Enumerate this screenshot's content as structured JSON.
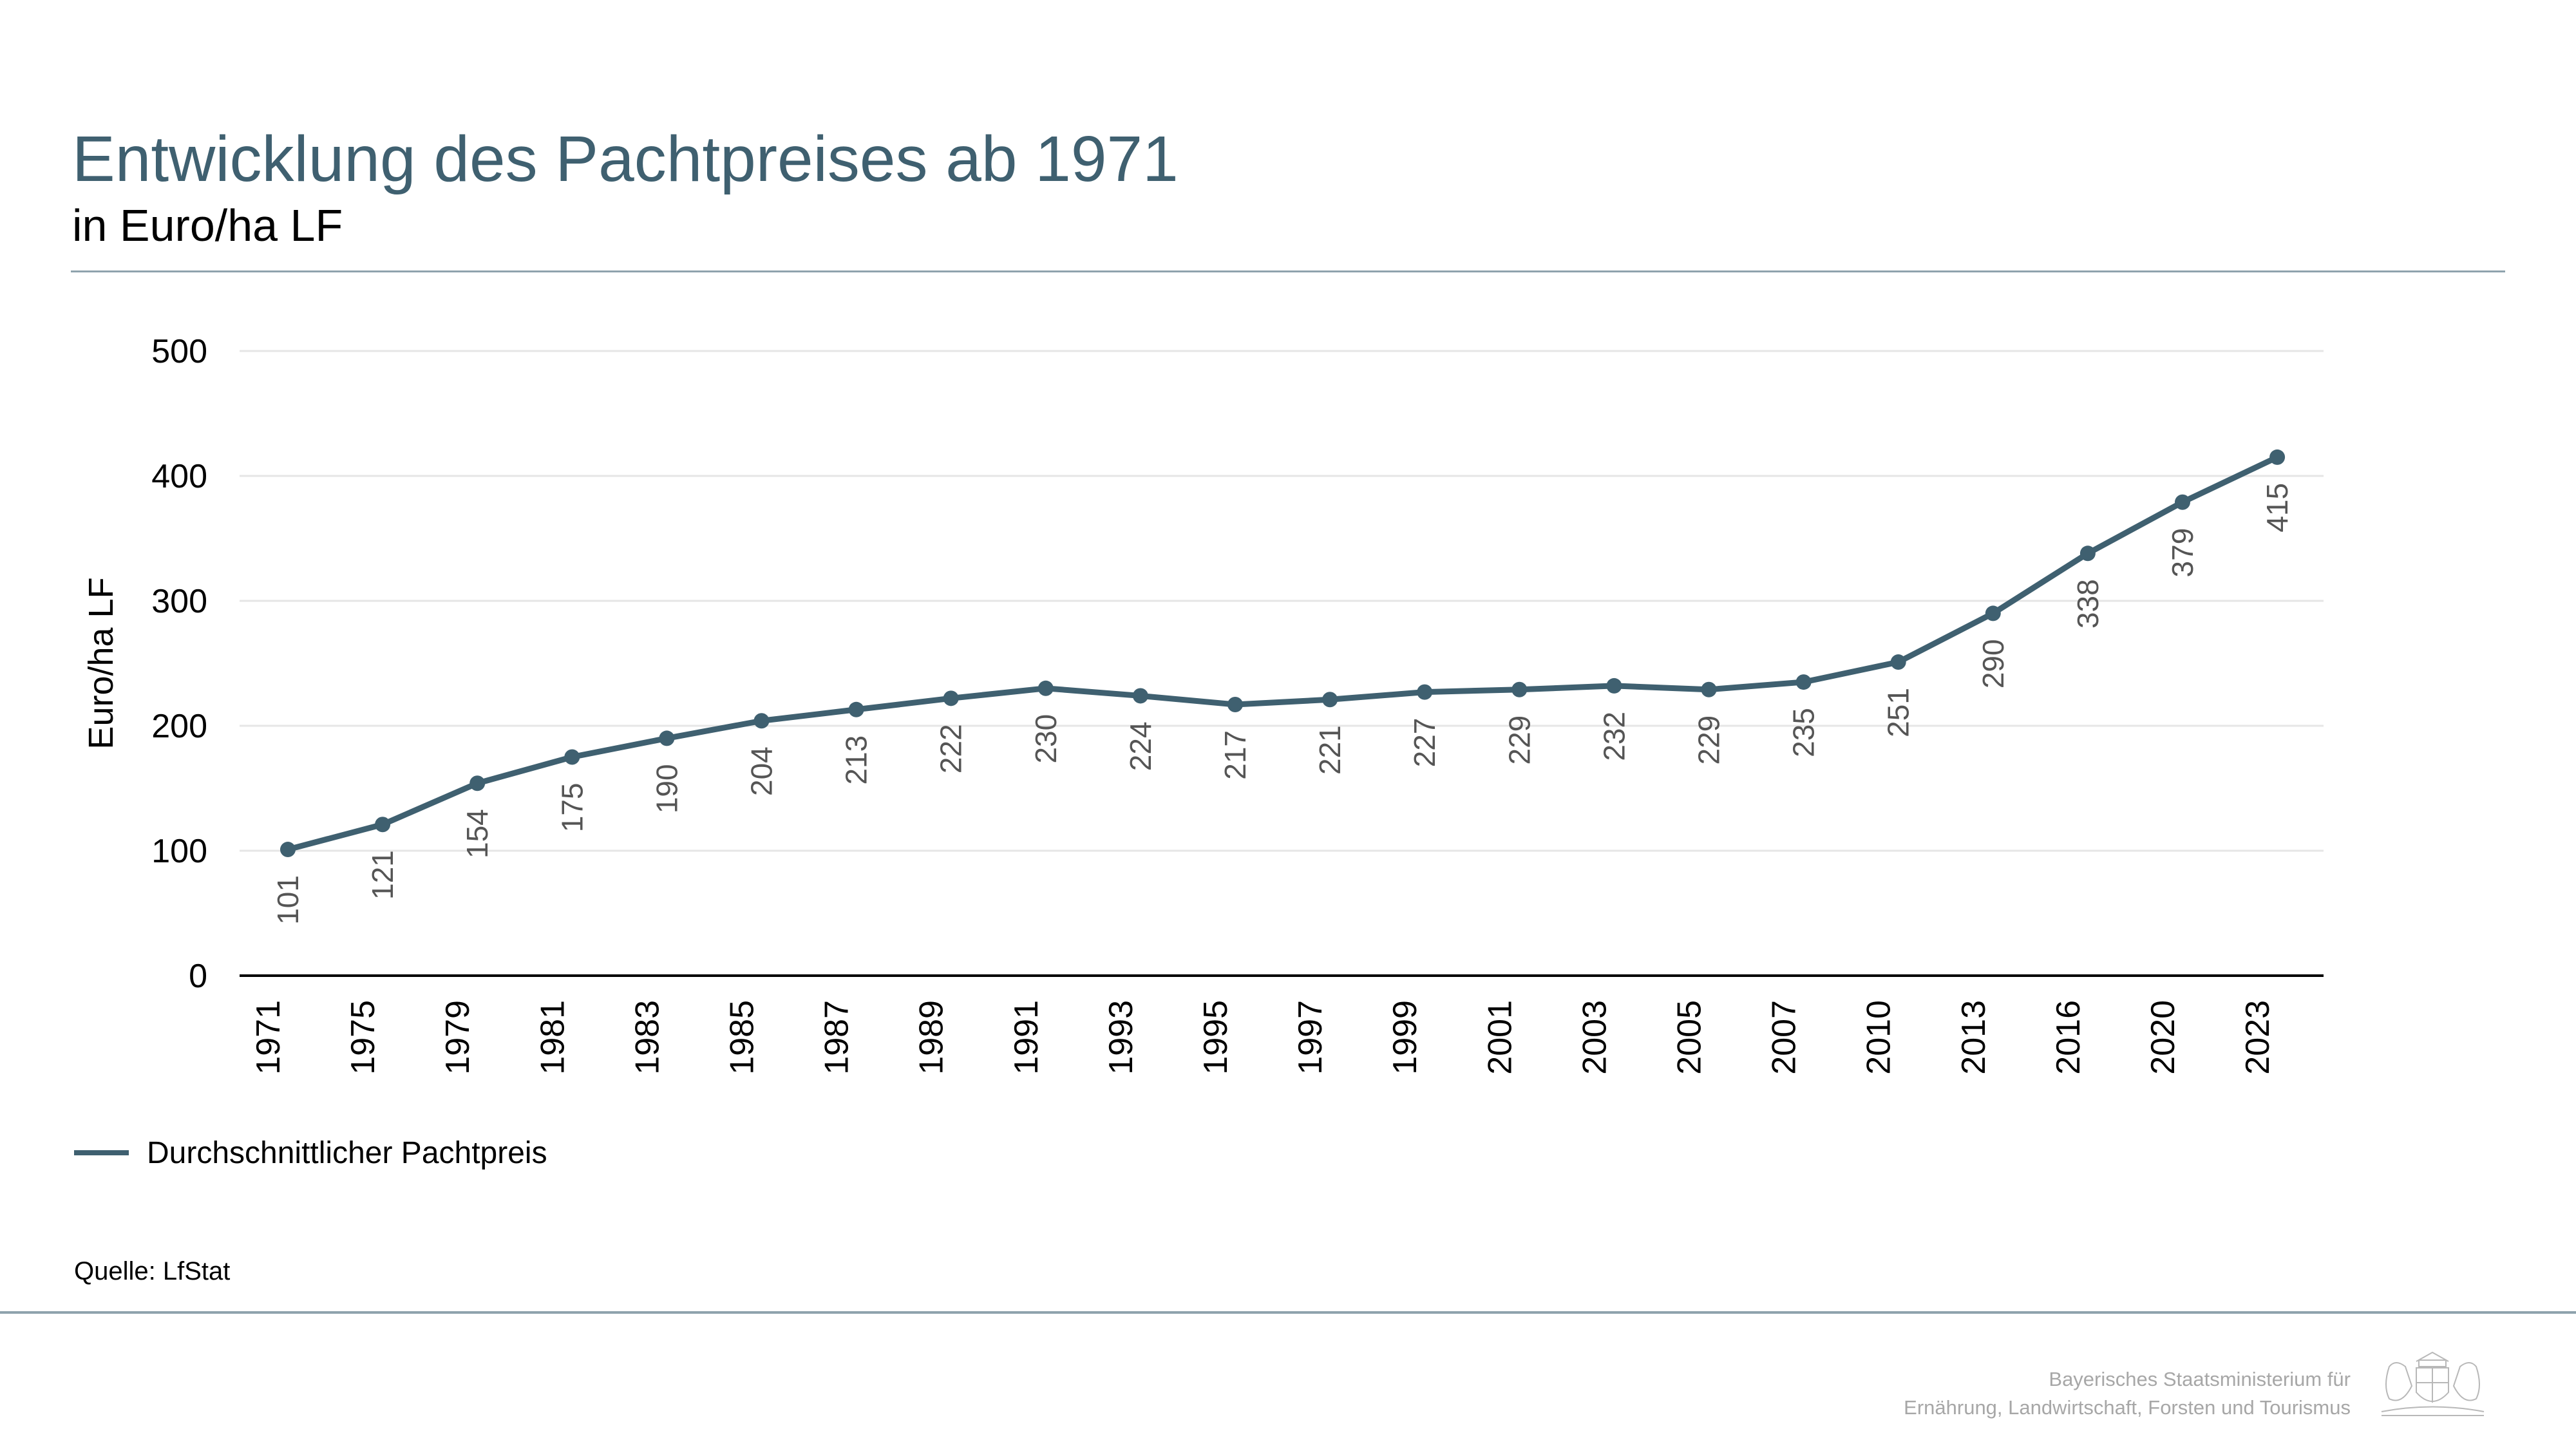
{
  "header": {
    "title": "Entwicklung des Pachtpreises ab 1971",
    "subtitle": "in Euro/ha LF"
  },
  "chart_data": {
    "type": "line",
    "title": "Entwicklung des Pachtpreises ab 1971",
    "subtitle": "in Euro/ha LF",
    "xlabel": "",
    "ylabel": "Euro/ha LF",
    "ylim": [
      0,
      500
    ],
    "yticks": [
      0,
      100,
      200,
      300,
      400,
      500
    ],
    "grid": "horizontal",
    "legend": "bottom-left",
    "categories": [
      "1971",
      "1975",
      "1979",
      "1981",
      "1983",
      "1985",
      "1987",
      "1989",
      "1991",
      "1993",
      "1995",
      "1997",
      "1999",
      "2001",
      "2003",
      "2005",
      "2007",
      "2010",
      "2013",
      "2016",
      "2020",
      "2023"
    ],
    "series": [
      {
        "name": "Durchschnittlicher Pachtpreis",
        "color": "#3f6070",
        "values": [
          101,
          121,
          154,
          175,
          190,
          204,
          213,
          222,
          230,
          224,
          217,
          221,
          227,
          229,
          232,
          229,
          235,
          251,
          290,
          338,
          379,
          415
        ]
      }
    ]
  },
  "legend": {
    "label": "Durchschnittlicher Pachtpreis"
  },
  "source": "Quelle: LfStat",
  "footer": {
    "ministry_line1": "Bayerisches Staatsministerium für",
    "ministry_line2": "Ernährung, Landwirtschaft, Forsten und Tourismus"
  },
  "colors": {
    "accent": "#3f6070",
    "rule": "#8fa3ad",
    "grid": "#e6e6e6"
  }
}
